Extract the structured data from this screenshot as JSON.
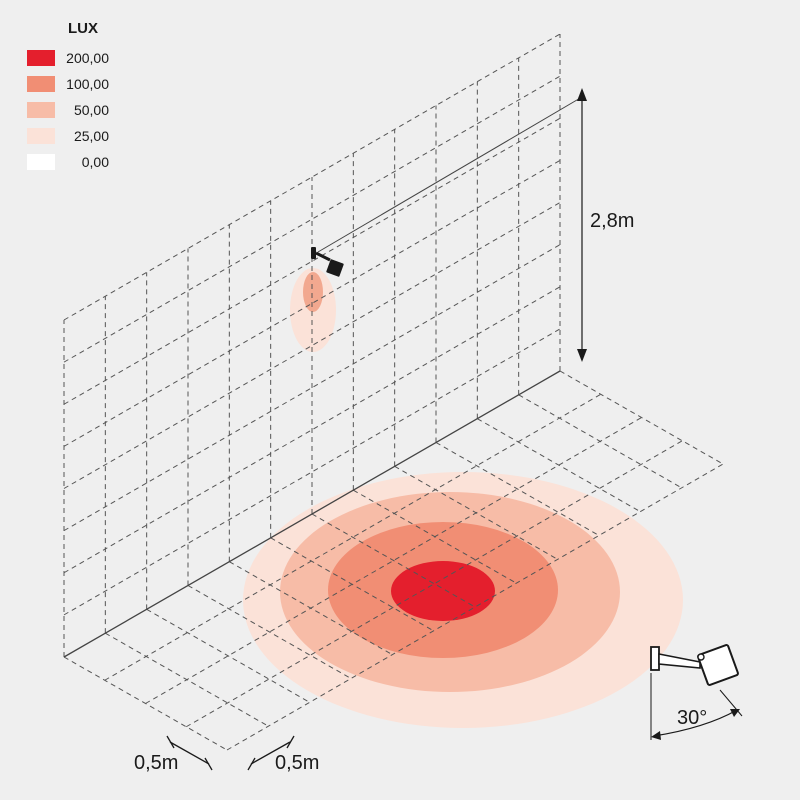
{
  "legend": {
    "title": "LUX",
    "items": [
      {
        "label": "200,00",
        "color": "#e41f2d"
      },
      {
        "label": "100,00",
        "color": "#f18e74"
      },
      {
        "label": "50,00",
        "color": "#f7bca7"
      },
      {
        "label": "25,00",
        "color": "#fbe2d8"
      },
      {
        "label": "0,00",
        "color": "#ffffff"
      }
    ]
  },
  "dimensions": {
    "height": "2,8m",
    "grid_x": "0,5m",
    "grid_y": "0,5m",
    "tilt_angle": "30°"
  },
  "colors": {
    "background": "#efefef",
    "grid_line": "#555555",
    "fixture": "#1a1a1a"
  }
}
